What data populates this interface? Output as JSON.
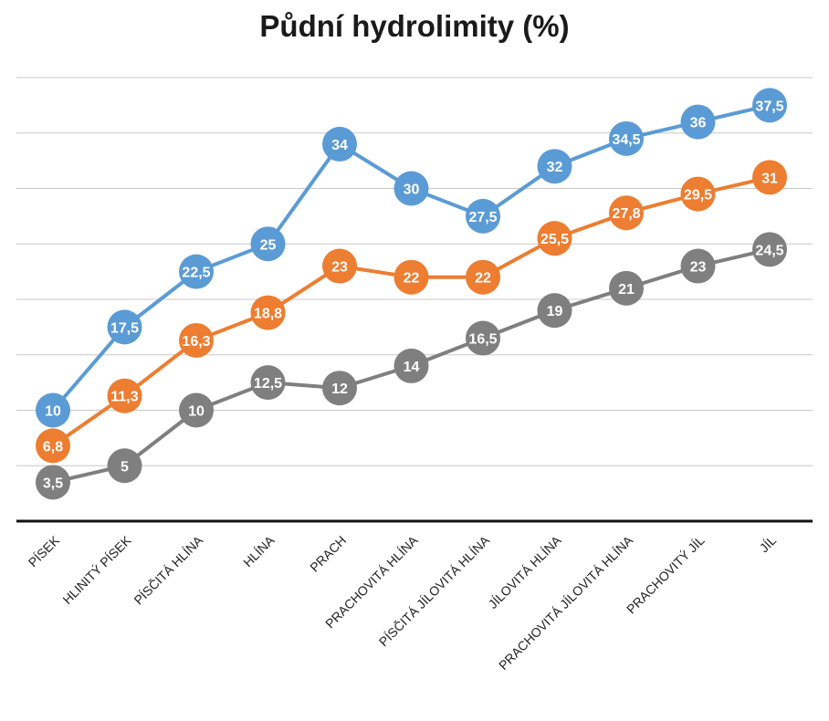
{
  "chart_data": {
    "type": "line",
    "title": "Půdní hydrolimity (%)",
    "xlabel": "",
    "ylabel": "",
    "ylim": [
      0,
      40
    ],
    "grid": true,
    "categories": [
      "PÍSEK",
      "HLINITÝ PÍSEK",
      "PÍSČITÁ HLÍNA",
      "HLÍNA",
      "PRACH",
      "PRACHOVITÁ HLÍNA",
      "PÍSČITÁ JÍLOVITÁ HLÍNA",
      "JÍLOVITÁ HLÍNA",
      "PRACHOVITÁ JÍLOVITÁ HLÍNA",
      "PRACHOVITÝ JÍL",
      "JÍL"
    ],
    "series": [
      {
        "color": "#5b9bd5",
        "values": [
          10,
          17.5,
          22.5,
          25,
          34,
          30,
          27.5,
          32,
          34.5,
          36,
          37.5
        ],
        "labels": [
          "10",
          "17,5",
          "22,5",
          "25",
          "34",
          "30",
          "27,5",
          "32",
          "34,5",
          "36",
          "37,5"
        ]
      },
      {
        "color": "#ed7d31",
        "values": [
          6.8,
          11.3,
          16.3,
          18.8,
          23,
          22,
          22,
          25.5,
          27.8,
          29.5,
          31
        ],
        "labels": [
          "6,8",
          "11,3",
          "16,3",
          "18,8",
          "23",
          "22",
          "22",
          "25,5",
          "27,8",
          "29,5",
          "31"
        ]
      },
      {
        "color": "#7f7f7f",
        "values": [
          3.5,
          5,
          10,
          12.5,
          12,
          14,
          16.5,
          19,
          21,
          23,
          24.5
        ],
        "labels": [
          "3,5",
          "5",
          "10",
          "12,5",
          "12",
          "14",
          "16,5",
          "19",
          "21",
          "23",
          "24,5"
        ]
      }
    ]
  }
}
